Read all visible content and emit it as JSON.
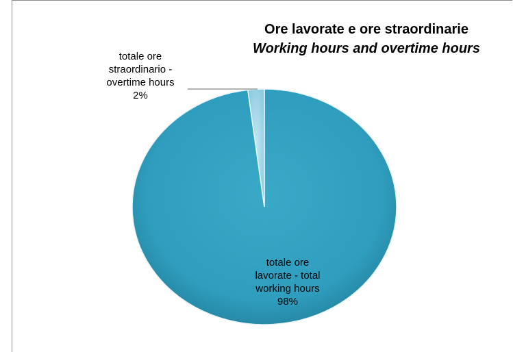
{
  "chart_data": {
    "type": "pie",
    "title": "Ore lavorate e ore straordinarie",
    "subtitle": "Working hours and overtime hours",
    "categories": [
      "totale ore lavorate - total working hours",
      "totale ore straordinario - overtime hours"
    ],
    "values": [
      98,
      2
    ],
    "unit": "%",
    "data_labels": [
      {
        "line1": "totale ore",
        "line2": "lavorate - total",
        "line3": "working hours",
        "percent": "98%"
      },
      {
        "line1": "totale ore",
        "line2": "straordinario -",
        "line3": "overtime hours",
        "percent": "2%"
      }
    ],
    "colors": [
      "#2f9dbd",
      "#9ed3e6"
    ],
    "legend": "none",
    "style": "3d-pie"
  }
}
